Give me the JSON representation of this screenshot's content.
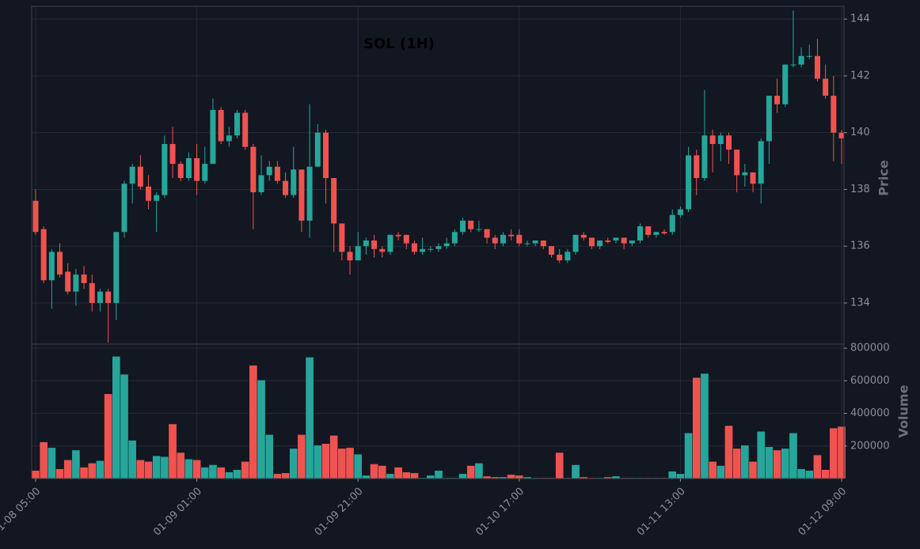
{
  "chart_data": {
    "type": "candlestick",
    "title": "SOL (1H)",
    "categories": [
      "01-08 05:00",
      null,
      null,
      null,
      null,
      null,
      null,
      null,
      null,
      null,
      null,
      null,
      null,
      null,
      null,
      null,
      null,
      null,
      null,
      null,
      "01-09 01:00",
      null,
      null,
      null,
      null,
      null,
      null,
      null,
      null,
      null,
      null,
      null,
      null,
      null,
      null,
      null,
      null,
      null,
      null,
      null,
      "01-09 21:00",
      null,
      null,
      null,
      null,
      null,
      null,
      null,
      null,
      null,
      null,
      null,
      null,
      null,
      null,
      null,
      null,
      null,
      null,
      null,
      "01-10 17:00",
      null,
      null,
      null,
      null,
      null,
      null,
      null,
      null,
      null,
      null,
      null,
      null,
      null,
      null,
      null,
      null,
      null,
      null,
      null,
      "01-11 13:00",
      null,
      null,
      null,
      null,
      null,
      null,
      null,
      null,
      null,
      null,
      null,
      null,
      null,
      null,
      null,
      null,
      null,
      null,
      null,
      "01-12 09:00"
    ],
    "open": [
      137.6,
      136.6,
      134.8,
      135.8,
      135.1,
      134.4,
      135.0,
      134.7,
      134.0,
      134.4,
      134.0,
      136.5,
      138.2,
      138.8,
      138.1,
      137.6,
      137.8,
      139.6,
      138.9,
      138.4,
      139.1,
      138.3,
      138.9,
      140.8,
      139.7,
      139.9,
      140.7,
      139.5,
      137.9,
      138.5,
      138.8,
      138.3,
      137.8,
      138.7,
      136.9,
      138.8,
      140.0,
      138.4,
      136.8,
      135.8,
      135.5,
      136.0,
      136.2,
      135.9,
      135.8,
      136.4,
      136.4,
      136.1,
      135.8,
      135.9,
      135.9,
      136.0,
      136.1,
      136.5,
      136.9,
      136.6,
      136.6,
      136.3,
      136.1,
      136.4,
      136.4,
      136.1,
      136.1,
      136.2,
      136.0,
      135.7,
      135.5,
      135.8,
      136.4,
      136.3,
      136.0,
      136.2,
      136.2,
      136.3,
      136.1,
      136.2,
      136.7,
      136.4,
      136.5,
      136.5,
      137.1,
      137.3,
      139.2,
      138.4,
      139.9,
      139.6,
      139.9,
      139.4,
      138.5,
      138.6,
      138.2,
      139.7,
      141.3,
      141.0,
      142.4,
      142.4,
      142.7,
      142.7,
      141.9,
      141.3,
      140.0
    ],
    "high": [
      138.0,
      136.7,
      135.9,
      136.1,
      135.4,
      135.2,
      135.3,
      135.0,
      134.5,
      134.5,
      136.5,
      138.3,
      138.9,
      139.2,
      138.5,
      137.9,
      139.9,
      140.2,
      139.0,
      139.3,
      139.6,
      139.5,
      141.2,
      140.9,
      140.2,
      140.8,
      140.8,
      139.6,
      139.2,
      139.0,
      139.0,
      138.6,
      139.5,
      138.7,
      141.0,
      140.3,
      140.1,
      138.4,
      136.8,
      136.0,
      136.5,
      136.3,
      136.4,
      136.0,
      136.4,
      136.5,
      136.4,
      136.2,
      136.3,
      136.0,
      136.1,
      136.3,
      136.6,
      137.0,
      136.9,
      136.9,
      136.6,
      136.4,
      136.5,
      136.6,
      136.6,
      136.2,
      136.2,
      136.2,
      136.0,
      135.9,
      135.9,
      136.4,
      136.5,
      136.3,
      136.2,
      136.3,
      136.3,
      136.3,
      136.2,
      136.8,
      136.7,
      136.5,
      136.6,
      137.3,
      137.4,
      139.5,
      139.4,
      141.5,
      140.1,
      140.0,
      140.0,
      139.4,
      138.9,
      138.6,
      139.8,
      141.3,
      141.9,
      142.4,
      144.3,
      143.0,
      143.1,
      143.3,
      142.4,
      142.0,
      140.1
    ],
    "low": [
      136.4,
      134.7,
      133.8,
      134.9,
      134.3,
      133.9,
      134.5,
      133.7,
      133.7,
      132.6,
      133.4,
      136.3,
      137.5,
      138.0,
      137.3,
      136.5,
      137.7,
      138.4,
      138.3,
      138.3,
      137.8,
      138.2,
      138.9,
      139.6,
      139.5,
      139.8,
      139.4,
      136.6,
      137.8,
      138.3,
      138.2,
      137.7,
      137.7,
      136.5,
      136.3,
      138.8,
      137.5,
      135.8,
      135.5,
      135.0,
      135.5,
      135.7,
      135.6,
      135.6,
      135.7,
      136.2,
      135.9,
      135.7,
      135.7,
      135.8,
      135.8,
      135.9,
      136.0,
      136.4,
      136.5,
      136.5,
      136.1,
      135.9,
      136.0,
      136.2,
      136.0,
      136.0,
      136.0,
      135.9,
      135.6,
      135.4,
      135.4,
      135.7,
      136.2,
      135.9,
      135.9,
      136.1,
      136.1,
      135.9,
      136.0,
      136.1,
      136.3,
      136.3,
      136.4,
      136.4,
      137.0,
      137.2,
      137.8,
      138.3,
      138.6,
      139.0,
      138.9,
      137.9,
      138.1,
      137.9,
      137.5,
      138.9,
      140.7,
      140.9,
      142.3,
      142.3,
      142.6,
      141.8,
      141.2,
      139.0,
      138.9
    ],
    "close": [
      136.5,
      134.8,
      135.8,
      135.0,
      134.4,
      135.0,
      134.7,
      134.0,
      134.4,
      134.0,
      136.5,
      138.2,
      138.8,
      138.1,
      137.6,
      137.8,
      139.6,
      138.9,
      138.4,
      139.1,
      138.3,
      138.9,
      140.8,
      139.7,
      139.9,
      140.7,
      139.5,
      137.9,
      138.5,
      138.8,
      138.3,
      137.8,
      138.7,
      136.9,
      138.8,
      140.0,
      138.4,
      136.8,
      135.8,
      135.5,
      136.0,
      136.2,
      135.9,
      135.8,
      136.4,
      136.35,
      136.1,
      135.8,
      135.9,
      135.9,
      136.0,
      136.1,
      136.5,
      136.9,
      136.6,
      136.6,
      136.3,
      136.1,
      136.4,
      136.35,
      136.1,
      136.1,
      136.2,
      136.0,
      135.7,
      135.5,
      135.8,
      136.4,
      136.3,
      136.0,
      136.2,
      136.15,
      136.3,
      136.1,
      136.2,
      136.7,
      136.4,
      136.5,
      136.45,
      137.1,
      137.3,
      139.2,
      138.4,
      139.9,
      139.6,
      139.9,
      139.4,
      138.5,
      138.6,
      138.2,
      139.7,
      141.3,
      141.0,
      142.4,
      142.4,
      142.7,
      142.7,
      141.9,
      141.3,
      140.0,
      139.8
    ],
    "volume": [
      50000,
      225000,
      190000,
      60000,
      115000,
      175000,
      70000,
      95000,
      110000,
      520000,
      750000,
      640000,
      235000,
      115000,
      105000,
      140000,
      135000,
      335000,
      160000,
      120000,
      115000,
      70000,
      85000,
      70000,
      40000,
      55000,
      105000,
      695000,
      605000,
      270000,
      30000,
      35000,
      185000,
      270000,
      745000,
      205000,
      215000,
      265000,
      185000,
      190000,
      150000,
      20000,
      90000,
      80000,
      30000,
      70000,
      40000,
      35000,
      5000,
      20000,
      50000,
      5000,
      5000,
      30000,
      80000,
      95000,
      15000,
      10000,
      10000,
      25000,
      20000,
      10000,
      5000,
      5000,
      5000,
      160000,
      5000,
      85000,
      10000,
      5000,
      5000,
      10000,
      15000,
      5000,
      5000,
      5000,
      5000,
      5000,
      5000,
      45000,
      30000,
      280000,
      620000,
      645000,
      105000,
      80000,
      325000,
      185000,
      205000,
      105000,
      290000,
      195000,
      175000,
      185000,
      280000,
      60000,
      50000,
      145000,
      55000,
      310000,
      320000
    ],
    "up_color": "#26a69a",
    "down_color": "#ef5350",
    "ylabel": "Price",
    "ylim": [
      132.55,
      144.45
    ],
    "yticks": [
      134,
      136,
      138,
      140,
      142,
      144
    ],
    "volume_label": "Volume",
    "volume_ylim": [
      0,
      825000
    ],
    "volume_yticks": [
      200000,
      400000,
      600000,
      800000
    ],
    "grid": true
  }
}
